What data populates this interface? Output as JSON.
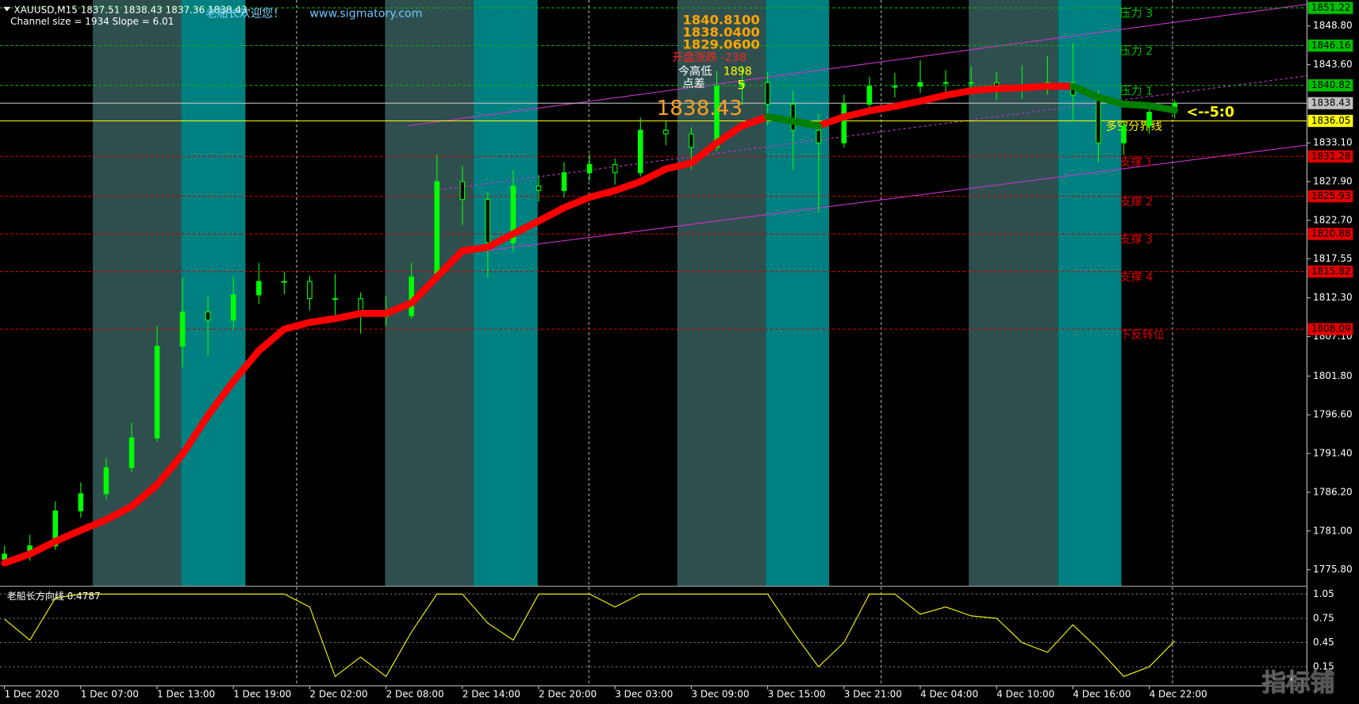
{
  "chart_data": [
    {
      "type": "candlestick",
      "title": "XAUUSD,M15  1837.51 1838.43 1837.36 1838.43",
      "subtitle": "Channel size = 1934  Slope = 6.01",
      "x": [
        0,
        8,
        16,
        24,
        32,
        40,
        48,
        56,
        64,
        72,
        80,
        88,
        96,
        104,
        112,
        120,
        128,
        136,
        144,
        152,
        160,
        168,
        176,
        184,
        192,
        200,
        208,
        216,
        224,
        232,
        240,
        248,
        256,
        264,
        272,
        280,
        288,
        296,
        304,
        312,
        320,
        328,
        336,
        344,
        352,
        360,
        368
      ],
      "open": [
        1777.2,
        1777.9,
        1779.0,
        1783.7,
        1786.0,
        1789.5,
        1793.5,
        1805.8,
        1810.4,
        1809.3,
        1812.7,
        1814.5,
        1814.5,
        1812.2,
        1812.2,
        1809.9,
        1809.9,
        1815.1,
        1827.9,
        1825.5,
        1819.7,
        1827.3,
        1826.7,
        1829.1,
        1830.2,
        1829.1,
        1834.8,
        1834.3,
        1832.5,
        1840.7,
        1841.2,
        1838.3,
        1834.8,
        1833.1,
        1838.3,
        1840.7,
        1840.7,
        1841.2,
        1841.2,
        1841.2,
        1840.7,
        1840.7,
        1841.2,
        1839.5,
        1833.1,
        1835.4,
        1837.2
      ],
      "high": [
        1779.0,
        1780.5,
        1785.0,
        1787.5,
        1790.8,
        1795.5,
        1808.5,
        1815.0,
        1812.5,
        1815.2,
        1817.0,
        1815.8,
        1815.3,
        1815.5,
        1813.0,
        1812.5,
        1817.0,
        1831.5,
        1830.0,
        1826.5,
        1829.5,
        1828.8,
        1830.5,
        1831.6,
        1831.0,
        1836.5,
        1836.0,
        1835.2,
        1842.8,
        1843.5,
        1842.6,
        1840.1,
        1837.0,
        1839.6,
        1842.0,
        1842.5,
        1844.2,
        1842.9,
        1843.4,
        1842.6,
        1843.5,
        1844.8,
        1846.5,
        1840.2,
        1836.2,
        1838.0,
        1838.8
      ],
      "low": [
        1776.3,
        1777.0,
        1778.5,
        1782.8,
        1785.2,
        1788.9,
        1793.0,
        1803.0,
        1804.5,
        1808.0,
        1811.5,
        1812.8,
        1810.6,
        1810.0,
        1807.5,
        1808.5,
        1809.5,
        1814.6,
        1822.0,
        1815.0,
        1818.5,
        1825.2,
        1825.8,
        1828.0,
        1827.5,
        1828.6,
        1832.8,
        1829.5,
        1832.0,
        1838.2,
        1835.5,
        1829.5,
        1823.8,
        1832.5,
        1837.4,
        1839.2,
        1839.8,
        1839.5,
        1839.8,
        1838.9,
        1839.0,
        1839.6,
        1836.0,
        1830.5,
        1831.5,
        1834.3,
        1836.4
      ],
      "close": [
        1777.9,
        1779.0,
        1783.7,
        1786.0,
        1789.5,
        1793.5,
        1805.8,
        1810.4,
        1809.3,
        1812.7,
        1814.5,
        1814.5,
        1812.2,
        1812.2,
        1809.9,
        1809.9,
        1815.1,
        1827.9,
        1825.5,
        1819.7,
        1827.3,
        1826.7,
        1829.1,
        1830.2,
        1829.1,
        1834.8,
        1834.3,
        1832.5,
        1840.7,
        1841.2,
        1838.3,
        1834.8,
        1833.1,
        1838.3,
        1840.7,
        1840.7,
        1841.2,
        1841.2,
        1841.2,
        1840.7,
        1840.7,
        1841.2,
        1839.5,
        1833.1,
        1835.4,
        1837.2,
        1838.43
      ],
      "up_color": "#00ff00",
      "down_color": "#000000",
      "series": [
        {
          "values": [
            1776.7,
            1777.9,
            1779.6,
            1781.1,
            1782.5,
            1784.3,
            1787.2,
            1791.3,
            1796.5,
            1801.1,
            1805.2,
            1808.1,
            1809.0,
            1809.5,
            1810.2,
            1810.2,
            1811.6,
            1815.1,
            1818.6,
            1819.1,
            1820.9,
            1822.6,
            1824.4,
            1825.8,
            1826.7,
            1827.9,
            1829.6,
            1830.4,
            1833.1,
            1835.4,
            1836.6,
            1836.0,
            1835.4,
            1836.6,
            1837.4,
            1838.0,
            1838.7,
            1839.5,
            1840.1,
            1840.4,
            1840.5,
            1840.7,
            1840.7,
            1839.2,
            1838.3,
            1838.1,
            1837.5
          ],
          "color": "#ff0000",
          "down_color": "#008000"
        }
      ],
      "channel": [
        {
          "x": [
            127,
            409.6
          ],
          "values": [
            1835.4,
            1851.7
          ],
          "color": "#cc33cc",
          "dash": false
        },
        {
          "x": [
            135,
            409.6
          ],
          "values": [
            1826.7,
            1842.1
          ],
          "color": "#cc33cc",
          "dash": true
        },
        {
          "x": [
            151,
            409.6
          ],
          "values": [
            1818.6,
            1832.8
          ],
          "color": "#cc33cc",
          "dash": false
        }
      ],
      "levels": [
        {
          "name": "压力 3",
          "value": 1851.22,
          "color": "#00c000",
          "dash": true
        },
        {
          "name": "压力 2",
          "value": 1846.16,
          "color": "#00c000",
          "dash": true
        },
        {
          "name": "压力 1",
          "value": 1840.82,
          "color": "#00c000",
          "dash": true
        },
        {
          "value": 1838.43,
          "color": "#c0c0c0",
          "dash": false
        },
        {
          "name": "多空分界线",
          "value": 1836.05,
          "color": "#ffff00",
          "dash": false
        },
        {
          "name": "支撑 1",
          "value": 1831.28,
          "color": "#e00000",
          "dash": true
        },
        {
          "name": "支撑 2",
          "value": 1825.93,
          "color": "#e00000",
          "dash": true
        },
        {
          "name": "支撑 3",
          "value": 1820.88,
          "color": "#e00000",
          "dash": true
        },
        {
          "name": "支撑 4",
          "value": 1815.82,
          "color": "#e00000",
          "dash": true
        },
        {
          "name": "下反转位",
          "value": 1808.09,
          "color": "#e00000",
          "dash": true
        }
      ],
      "annotations": [
        {
          "text": "1840.8100",
          "color": "#ffa500"
        },
        {
          "text": "1838.0400",
          "color": "#ffa500"
        },
        {
          "text": "1829.0600",
          "color": "#ffa500"
        },
        {
          "text": "开盘涨跌 -238",
          "color": "#ff2020"
        },
        {
          "text": "今高低",
          "color": "#ffffff"
        },
        {
          "text": "1898",
          "color": "#ffff00"
        },
        {
          "text": "点差",
          "color": "#ffffff"
        },
        {
          "text": "5",
          "color": "#ffff00"
        },
        {
          "text": "1838.43",
          "color": "#ffa020"
        },
        {
          "text": "<--5:0",
          "color": "#ffff00"
        }
      ],
      "xlim": [
        -1.4,
        409.6
      ],
      "xticks": [
        {
          "value": 0,
          "label": "1 Dec 2020"
        },
        {
          "value": 24,
          "label": "1 Dec 07:00"
        },
        {
          "value": 48,
          "label": "1 Dec 13:00"
        },
        {
          "value": 72,
          "label": "1 Dec 19:00"
        },
        {
          "value": 96,
          "label": "2 Dec 02:00"
        },
        {
          "value": 120,
          "label": "2 Dec 08:00"
        },
        {
          "value": 144,
          "label": "2 Dec 14:00"
        },
        {
          "value": 168,
          "label": "2 Dec 20:00"
        },
        {
          "value": 192,
          "label": "3 Dec 03:00"
        },
        {
          "value": 216,
          "label": "3 Dec 09:00"
        },
        {
          "value": 240,
          "label": "3 Dec 15:00"
        },
        {
          "value": 264,
          "label": "3 Dec 21:00"
        },
        {
          "value": 288,
          "label": "4 Dec 04:00"
        },
        {
          "value": 312,
          "label": "4 Dec 10:00"
        },
        {
          "value": 336,
          "label": "4 Dec 16:00"
        },
        {
          "value": 360,
          "label": "4 Dec 22:00"
        }
      ],
      "ylim": [
        1773.7,
        1851.7
      ],
      "yticks": [
        {
          "value": 1848.8,
          "label": "1848.80"
        },
        {
          "value": 1843.6,
          "label": "1843.60"
        },
        {
          "value": 1833.1,
          "label": "1833.10"
        },
        {
          "value": 1827.9,
          "label": "1827.90"
        },
        {
          "value": 1822.7,
          "label": "1822.70"
        },
        1817.55,
        {
          "value": 1812.3,
          "label": "1812.30"
        },
        {
          "value": 1807.1,
          "label": "1807.10"
        },
        {
          "value": 1801.8,
          "label": "1801.80"
        },
        {
          "value": 1796.6,
          "label": "1796.60"
        },
        {
          "value": 1791.4,
          "label": "1791.40"
        },
        {
          "value": 1786.2,
          "label": "1786.20"
        },
        {
          "value": 1781.0,
          "label": "1781.00"
        },
        {
          "value": 1775.8,
          "label": "1775.80"
        }
      ]
    },
    {
      "type": "line",
      "title": "老船长方向线 0.4787",
      "x": [
        0,
        8,
        16,
        24,
        32,
        40,
        48,
        56,
        64,
        72,
        80,
        88,
        96,
        104,
        112,
        120,
        128,
        136,
        144,
        152,
        160,
        168,
        176,
        184,
        192,
        200,
        208,
        216,
        224,
        232,
        240,
        248,
        256,
        264,
        272,
        280,
        288,
        296,
        304,
        312,
        320,
        328,
        336,
        344,
        352,
        360,
        368
      ],
      "values": [
        0.74,
        0.48,
        1.0,
        1.05,
        1.05,
        1.05,
        1.05,
        1.05,
        1.05,
        1.05,
        1.05,
        1.05,
        0.89,
        0.03,
        0.27,
        0.03,
        0.58,
        1.05,
        1.05,
        0.69,
        0.48,
        1.05,
        1.05,
        1.05,
        0.89,
        1.05,
        1.05,
        1.05,
        1.05,
        1.05,
        1.05,
        0.58,
        0.15,
        0.45,
        1.05,
        1.05,
        0.8,
        0.89,
        0.78,
        0.75,
        0.45,
        0.33,
        0.67,
        0.37,
        0.03,
        0.15,
        0.47
      ],
      "color": "#ffff00",
      "xlim": [
        -1.4,
        409.6
      ],
      "ylim": [
        -0.064,
        1.136
      ],
      "yticks": [
        1.05,
        0.75,
        0.45,
        0.15
      ]
    }
  ],
  "header": {
    "welcome": "老船长欢迎您！",
    "website": "www.sigmatory.com"
  },
  "watermark": "指标铺"
}
